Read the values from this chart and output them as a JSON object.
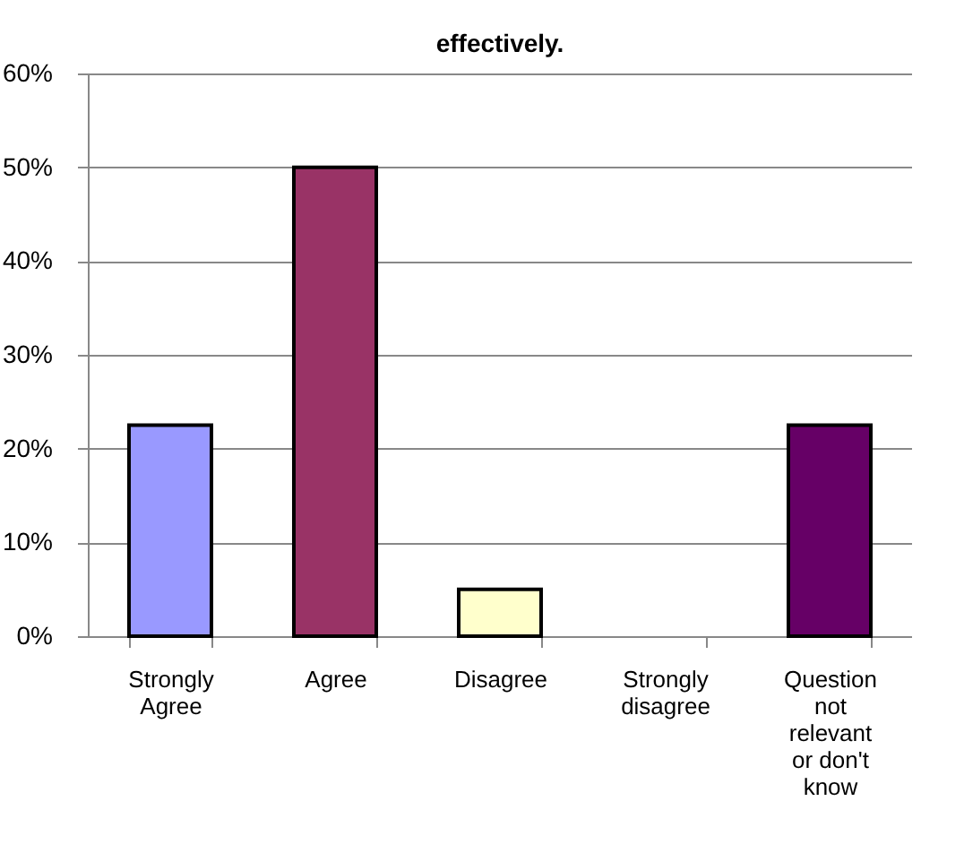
{
  "chart_data": {
    "type": "bar",
    "title": "effectively.",
    "categories": [
      "Strongly Agree",
      "Agree",
      "Disagree",
      "Strongly disagree",
      "Question not relevant or don't know"
    ],
    "values": [
      22.5,
      50,
      5,
      0,
      22.5
    ],
    "colors": [
      "#9999ff",
      "#993366",
      "#ffffcc",
      null,
      "#660066"
    ],
    "ylim": [
      0,
      60
    ],
    "yticks": [
      {
        "value": 0,
        "label": "0%"
      },
      {
        "value": 10,
        "label": "10%"
      },
      {
        "value": 20,
        "label": "20%"
      },
      {
        "value": 30,
        "label": "30%"
      },
      {
        "value": 40,
        "label": "40%"
      },
      {
        "value": 50,
        "label": "50%"
      },
      {
        "value": 60,
        "label": "60%"
      }
    ],
    "grid": "y"
  }
}
